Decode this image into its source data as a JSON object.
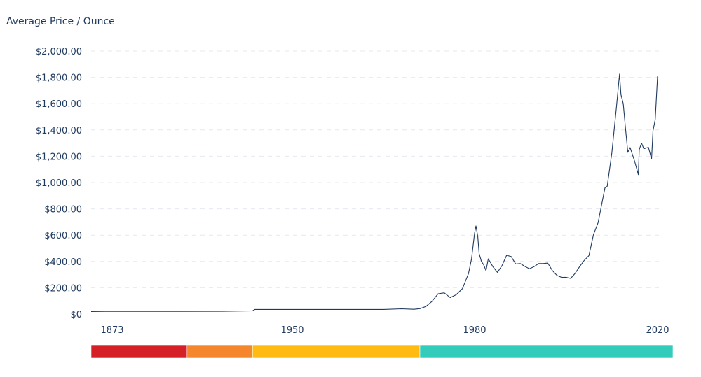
{
  "chart_data": {
    "type": "line",
    "title": "Average Price / Ounce",
    "xlabel": "",
    "ylabel": "",
    "ylim": [
      0,
      2000
    ],
    "xlim": [
      1833,
      2020
    ],
    "grid": true,
    "y_tick_labels": [
      "$0",
      "$200.00",
      "$400.00",
      "$600.00",
      "$800.00",
      "$1,000.00",
      "$1,200.00",
      "$1,400.00",
      "$1,600.00",
      "$1,800.00",
      "$2,000.00"
    ],
    "y_tick_values": [
      0,
      200,
      400,
      600,
      800,
      1000,
      1200,
      1400,
      1600,
      1800,
      2000
    ],
    "x_tick_labels": [
      "1873",
      "1950",
      "1980",
      "2020"
    ],
    "series": [
      {
        "name": "",
        "color": "#1f3a5f",
        "x": [
          1833,
          1860,
          1880,
          1895,
          1900,
          1920,
          1933,
          1934,
          1940,
          1950,
          1955,
          1960,
          1965,
          1968,
          1970,
          1971,
          1972,
          1973,
          1974,
          1975,
          1976,
          1977,
          1978,
          1979,
          1979.5,
          1980,
          1980.3,
          1980.7,
          1981,
          1981.5,
          1982,
          1982.5,
          1983,
          1984,
          1985,
          1986,
          1987,
          1988,
          1989,
          1990,
          1991,
          1992,
          1993,
          1994,
          1995,
          1996,
          1997,
          1998,
          1999,
          2000,
          2001,
          2002,
          2003,
          2004,
          2005,
          2006,
          2007,
          2008,
          2008.5,
          2009,
          2010,
          2011,
          2011.7,
          2012,
          2012.5,
          2013,
          2013.5,
          2014,
          2015,
          2015.8,
          2016,
          2016.5,
          2017,
          2018,
          2018.7,
          2019,
          2019.5,
          2020
        ],
        "values": [
          19,
          20,
          20,
          20,
          20,
          21,
          24,
          35,
          35,
          35,
          35,
          35,
          35,
          40,
          36,
          41,
          58,
          97,
          154,
          161,
          125,
          148,
          193,
          307,
          420,
          615,
          670,
          590,
          460,
          400,
          375,
          330,
          420,
          360,
          317,
          368,
          447,
          437,
          381,
          384,
          362,
          344,
          360,
          384,
          384,
          388,
          331,
          294,
          279,
          280,
          271,
          310,
          363,
          409,
          444,
          604,
          695,
          872,
          960,
          972,
          1225,
          1571,
          1825,
          1669,
          1600,
          1411,
          1230,
          1266,
          1160,
          1060,
          1251,
          1300,
          1257,
          1268,
          1180,
          1393,
          1480,
          1808
        ]
      }
    ],
    "timeline_bands": [
      {
        "from": 1873,
        "to": 1905,
        "color": "#d62027"
      },
      {
        "from": 1905,
        "to": 1933,
        "color": "#f5862b"
      },
      {
        "from": 1933,
        "to": 1971,
        "color": "#ffbb11"
      },
      {
        "from": 1971,
        "to": 2020,
        "color": "#33ccbb"
      }
    ]
  }
}
